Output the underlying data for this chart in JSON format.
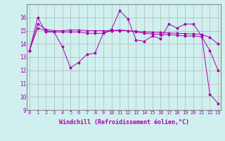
{
  "xlabel": "Windchill (Refroidissement éolien,°C)",
  "background_color": "#cff0ee",
  "grid_color": "#aaaaaa",
  "line_color": "#aa00aa",
  "x_hours": [
    0,
    1,
    2,
    3,
    4,
    5,
    6,
    7,
    8,
    9,
    10,
    11,
    12,
    13,
    14,
    15,
    16,
    17,
    18,
    19,
    20,
    21,
    22,
    23
  ],
  "series1": [
    13.5,
    16.0,
    14.9,
    14.9,
    13.8,
    12.2,
    12.6,
    13.2,
    13.3,
    14.8,
    15.1,
    16.5,
    15.9,
    14.3,
    14.2,
    14.6,
    14.4,
    15.5,
    15.2,
    15.5,
    15.5,
    14.6,
    10.2,
    9.5
  ],
  "series2": [
    13.5,
    15.2,
    15.0,
    14.9,
    14.9,
    14.9,
    14.9,
    14.8,
    14.8,
    14.8,
    15.0,
    15.05,
    15.0,
    14.9,
    14.8,
    14.75,
    14.7,
    14.7,
    14.65,
    14.6,
    14.6,
    14.55,
    13.5,
    12.0
  ],
  "series3": [
    13.5,
    15.5,
    15.1,
    15.0,
    15.0,
    15.05,
    15.05,
    15.0,
    15.0,
    15.0,
    15.0,
    15.0,
    15.0,
    14.95,
    14.9,
    14.88,
    14.85,
    14.83,
    14.8,
    14.78,
    14.75,
    14.72,
    14.5,
    14.0
  ],
  "ylim_min": 9,
  "ylim_max": 17,
  "yticks": [
    9,
    10,
    11,
    12,
    13,
    14,
    15,
    16
  ],
  "xlim_min": 0,
  "xlim_max": 23,
  "figw": 3.2,
  "figh": 2.0,
  "dpi": 100,
  "tick_fontsize": 5,
  "xlabel_fontsize": 6
}
